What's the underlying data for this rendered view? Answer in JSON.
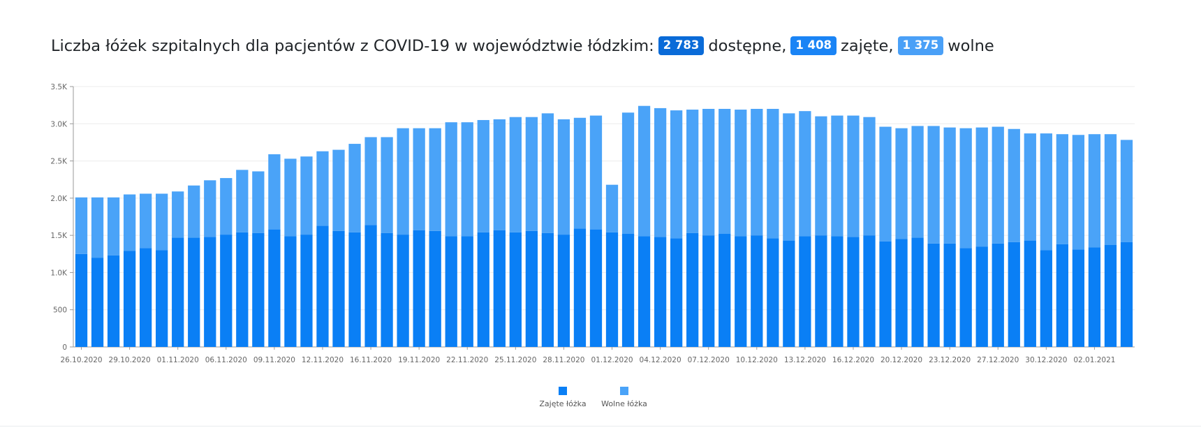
{
  "title": {
    "text": "Liczba łóżek szpitalnych dla pacjentów z COVID-19 w województwie łódzkim:",
    "badge_total": "2 783",
    "label_total": "dostępne,",
    "badge_occupied": "1 408",
    "label_occupied": "zajęte,",
    "badge_free": "1 375",
    "label_free": "wolne"
  },
  "colors": {
    "occupied": "#0a7ff5",
    "free": "#4aa3f8",
    "badge_total": "#0a6bd8",
    "badge_occupied": "#1a84f5",
    "badge_free": "#4aa0f7"
  },
  "chart_data": {
    "type": "bar",
    "stacked": true,
    "ylim": [
      0,
      3500
    ],
    "yticks": [
      0,
      500,
      1000,
      1500,
      2000,
      2500,
      3000,
      3500
    ],
    "ytick_labels": [
      "0",
      "500",
      "1.0K",
      "1.5K",
      "2.0K",
      "2.5K",
      "3.0K",
      "3.5K"
    ],
    "xtick_labels": [
      {
        "index": 0,
        "label": "26.10.2020"
      },
      {
        "index": 3,
        "label": "29.10.2020"
      },
      {
        "index": 6,
        "label": "01.11.2020"
      },
      {
        "index": 9,
        "label": "06.11.2020"
      },
      {
        "index": 12,
        "label": "09.11.2020"
      },
      {
        "index": 15,
        "label": "12.11.2020"
      },
      {
        "index": 18,
        "label": "16.11.2020"
      },
      {
        "index": 21,
        "label": "19.11.2020"
      },
      {
        "index": 24,
        "label": "22.11.2020"
      },
      {
        "index": 27,
        "label": "25.11.2020"
      },
      {
        "index": 30,
        "label": "28.11.2020"
      },
      {
        "index": 33,
        "label": "01.12.2020"
      },
      {
        "index": 36,
        "label": "04.12.2020"
      },
      {
        "index": 39,
        "label": "07.12.2020"
      },
      {
        "index": 42,
        "label": "10.12.2020"
      },
      {
        "index": 45,
        "label": "13.12.2020"
      },
      {
        "index": 48,
        "label": "16.12.2020"
      },
      {
        "index": 51,
        "label": "20.12.2020"
      },
      {
        "index": 54,
        "label": "23.12.2020"
      },
      {
        "index": 57,
        "label": "27.12.2020"
      },
      {
        "index": 60,
        "label": "30.12.2020"
      },
      {
        "index": 63,
        "label": "02.01.2021"
      }
    ],
    "grid": true,
    "legend_position": "bottom-center",
    "series": [
      {
        "name": "Zajęte łóżka",
        "values": [
          1250,
          1200,
          1230,
          1290,
          1330,
          1300,
          1470,
          1470,
          1480,
          1510,
          1540,
          1530,
          1580,
          1490,
          1510,
          1630,
          1560,
          1540,
          1640,
          1530,
          1510,
          1570,
          1560,
          1490,
          1490,
          1540,
          1570,
          1540,
          1560,
          1530,
          1510,
          1590,
          1580,
          1540,
          1520,
          1490,
          1480,
          1460,
          1530,
          1500,
          1520,
          1490,
          1500,
          1460,
          1430,
          1490,
          1500,
          1490,
          1480,
          1500,
          1420,
          1450,
          1470,
          1390,
          1390,
          1330,
          1350,
          1390,
          1410,
          1430,
          1300,
          1380,
          1310,
          1340,
          1370,
          1408
        ]
      },
      {
        "name": "Wolne łóżka",
        "values": [
          760,
          810,
          780,
          760,
          730,
          760,
          620,
          700,
          760,
          760,
          840,
          830,
          1010,
          1040,
          1050,
          1000,
          1090,
          1190,
          1180,
          1290,
          1430,
          1370,
          1380,
          1530,
          1530,
          1510,
          1490,
          1550,
          1530,
          1610,
          1550,
          1490,
          1530,
          640,
          1630,
          1750,
          1730,
          1720,
          1660,
          1700,
          1680,
          1700,
          1700,
          1740,
          1710,
          1680,
          1600,
          1620,
          1630,
          1590,
          1540,
          1490,
          1500,
          1580,
          1560,
          1610,
          1600,
          1570,
          1520,
          1440,
          1570,
          1480,
          1540,
          1520,
          1490,
          1375
        ]
      }
    ]
  }
}
